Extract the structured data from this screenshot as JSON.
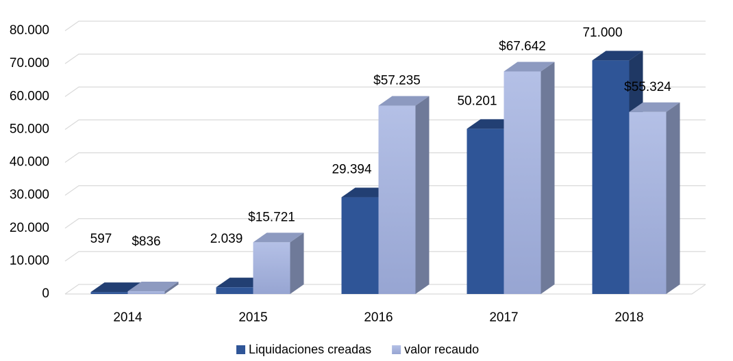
{
  "chart_data": {
    "type": "bar3d",
    "categories": [
      "2014",
      "2015",
      "2016",
      "2017",
      "2018"
    ],
    "series": [
      {
        "name": "Liquidaciones creadas",
        "color": "#2f5597",
        "values": [
          597,
          2039,
          29394,
          50201,
          71000
        ],
        "value_labels": [
          "597",
          "2.039",
          "29.394",
          "50.201",
          "71.000"
        ]
      },
      {
        "name": "valor recaudo",
        "color": "#aab7e0",
        "values": [
          836,
          15721,
          57235,
          67642,
          55324
        ],
        "value_labels": [
          "$836",
          "$15.721",
          "$57.235",
          "$67.642",
          "$55.324"
        ]
      }
    ],
    "ylim": [
      0,
      80000
    ],
    "yticks": [
      0,
      {
        "value": 10000,
        "label": "10.000"
      },
      {
        "value": 20000,
        "label": "20.000"
      },
      {
        "value": 30000,
        "label": "30.000"
      },
      {
        "value": 40000,
        "label": "40.000"
      },
      {
        "value": 50000,
        "label": "50.000"
      },
      {
        "value": 60000,
        "label": "60.000"
      },
      {
        "value": 70000,
        "label": "70.000"
      },
      {
        "value": 80000,
        "label": "80.000"
      }
    ],
    "grid": true,
    "legend": "bottom"
  }
}
